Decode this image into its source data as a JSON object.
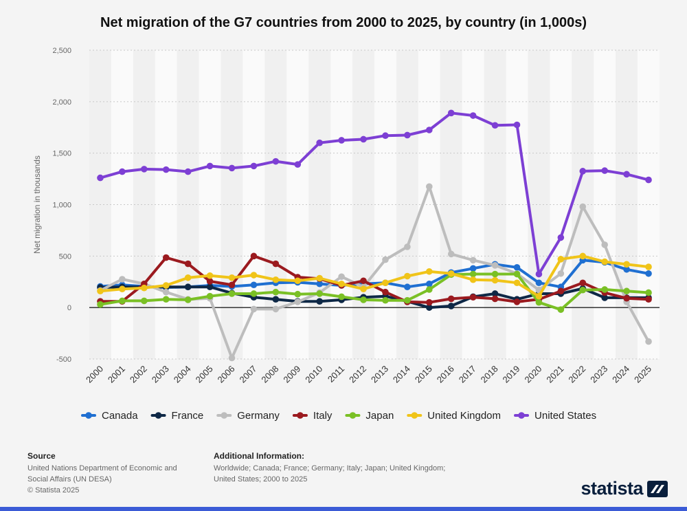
{
  "title": "Net migration of the G7 countries from 2000 to 2025, by country (in 1,000s)",
  "footer": {
    "source_heading": "Source",
    "source_lines": [
      "United Nations Department of Economic and",
      "Social Affairs (UN DESA)",
      "© Statista 2025"
    ],
    "additional_heading": "Additional Information:",
    "additional_lines": [
      "Worldwide; Canada; France; Germany; Italy; Japan; United Kingdom;",
      "United States; 2000 to 2025"
    ],
    "logo_text": "statista"
  },
  "chart_data": {
    "type": "line",
    "title": "Net migration of the G7 countries from 2000 to 2025, by country (in 1,000s)",
    "xlabel": "",
    "ylabel": "Net migration in thousands",
    "ylim": [
      -500,
      2500
    ],
    "yticks": [
      -500,
      0,
      500,
      1000,
      1500,
      2000,
      2500
    ],
    "ytick_labels": [
      "-500",
      "0",
      "500",
      "1,000",
      "1,500",
      "2,000",
      "2,500"
    ],
    "grid": true,
    "legend_position": "bottom",
    "x": [
      "2000",
      "2001",
      "2002",
      "2003",
      "2004",
      "2005",
      "2006",
      "2007",
      "2008",
      "2009",
      "2010",
      "2011",
      "2012",
      "2013",
      "2014",
      "2015",
      "2016",
      "2017",
      "2018",
      "2019",
      "2020",
      "2021",
      "2022",
      "2023",
      "2024",
      "2025"
    ],
    "series": [
      {
        "name": "Canada",
        "color": "#1f6fd1",
        "values": [
          205,
          220,
          205,
          195,
          200,
          215,
          205,
          220,
          240,
          245,
          230,
          215,
          230,
          240,
          200,
          230,
          340,
          380,
          420,
          390,
          240,
          200,
          460,
          440,
          370,
          330
        ]
      },
      {
        "name": "France",
        "color": "#0e2846",
        "values": [
          195,
          200,
          200,
          200,
          200,
          200,
          140,
          100,
          80,
          60,
          60,
          75,
          100,
          110,
          60,
          0,
          15,
          105,
          135,
          80,
          135,
          135,
          185,
          95,
          95,
          95
        ]
      },
      {
        "name": "Germany",
        "color": "#bdbdbd",
        "values": [
          165,
          275,
          230,
          150,
          80,
          90,
          -490,
          -15,
          -15,
          55,
          145,
          300,
          200,
          465,
          590,
          1175,
          520,
          460,
          410,
          330,
          170,
          330,
          980,
          610,
          55,
          -330
        ]
      },
      {
        "name": "Italy",
        "color": "#9b1a1f",
        "values": [
          60,
          60,
          230,
          485,
          425,
          255,
          220,
          500,
          425,
          295,
          280,
          215,
          260,
          150,
          55,
          50,
          85,
          100,
          85,
          55,
          80,
          160,
          240,
          145,
          90,
          80
        ]
      },
      {
        "name": "Japan",
        "color": "#7ac025",
        "values": [
          30,
          65,
          65,
          80,
          75,
          110,
          135,
          135,
          150,
          130,
          135,
          105,
          75,
          70,
          70,
          175,
          320,
          325,
          325,
          325,
          50,
          -20,
          170,
          175,
          160,
          145
        ]
      },
      {
        "name": "United Kingdom",
        "color": "#f0c419",
        "values": [
          160,
          180,
          190,
          215,
          290,
          310,
          290,
          315,
          270,
          260,
          285,
          230,
          180,
          240,
          305,
          350,
          330,
          270,
          265,
          240,
          110,
          470,
          500,
          445,
          420,
          395
        ]
      },
      {
        "name": "United States",
        "color": "#7d3fd4",
        "values": [
          1260,
          1320,
          1345,
          1340,
          1320,
          1375,
          1355,
          1375,
          1420,
          1390,
          1600,
          1625,
          1635,
          1670,
          1675,
          1725,
          1890,
          1865,
          1770,
          1775,
          325,
          680,
          1325,
          1330,
          1295,
          1240
        ]
      }
    ]
  }
}
